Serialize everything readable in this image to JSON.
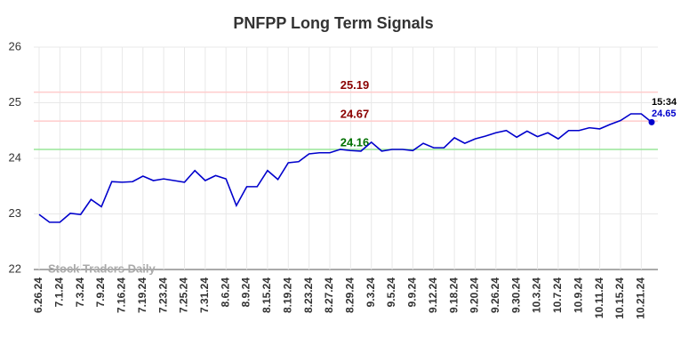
{
  "chart_data": {
    "type": "line",
    "title": "PNFPP Long Term Signals",
    "categories": [
      "6.26.24",
      null,
      "7.1.24",
      null,
      "7.3.24",
      null,
      "7.9.24",
      null,
      "7.16.24",
      null,
      "7.19.24",
      null,
      "7.23.24",
      null,
      "7.25.24",
      null,
      "7.31.24",
      null,
      "8.6.24",
      null,
      "8.9.24",
      null,
      "8.15.24",
      null,
      "8.19.24",
      null,
      "8.23.24",
      null,
      "8.27.24",
      null,
      "8.29.24",
      null,
      "9.3.24",
      null,
      "9.5.24",
      null,
      "9.9.24",
      null,
      "9.12.24",
      null,
      "9.18.24",
      null,
      "9.20.24",
      null,
      "9.26.24",
      null,
      "9.30.24",
      null,
      "10.3.24",
      null,
      "10.7.24",
      null,
      "10.9.24",
      null,
      "10.11.24",
      null,
      "10.15.24",
      null,
      "10.21.24",
      null
    ],
    "values": [
      22.99,
      22.85,
      22.85,
      23.01,
      22.99,
      23.26,
      23.13,
      23.58,
      23.57,
      23.58,
      23.68,
      23.6,
      23.63,
      23.6,
      23.57,
      23.78,
      23.6,
      23.69,
      23.63,
      23.15,
      23.49,
      23.49,
      23.78,
      23.62,
      23.92,
      23.94,
      24.08,
      24.1,
      24.1,
      24.16,
      24.14,
      24.13,
      24.29,
      24.13,
      24.16,
      24.16,
      24.14,
      24.27,
      24.19,
      24.19,
      24.37,
      24.27,
      24.35,
      24.4,
      24.46,
      24.5,
      24.38,
      24.49,
      24.39,
      24.46,
      24.35,
      24.5,
      24.5,
      24.55,
      24.53,
      24.61,
      24.68,
      24.8,
      24.8,
      24.65
    ],
    "color": "#0000cc",
    "ylim": [
      22,
      26
    ],
    "yticks": [
      22,
      23,
      24,
      25,
      26
    ],
    "grid": true,
    "hlines": [
      {
        "value": 25.19,
        "color": "#ffcccc",
        "label_color": "#8b0000"
      },
      {
        "value": 24.67,
        "color": "#ffcccc",
        "label_color": "#8b0000"
      },
      {
        "value": 24.16,
        "color": "#99e699",
        "label_color": "#007000"
      }
    ],
    "last_label": {
      "time": "15:34",
      "value": 24.65
    },
    "watermark": "Stock Traders Daily"
  }
}
